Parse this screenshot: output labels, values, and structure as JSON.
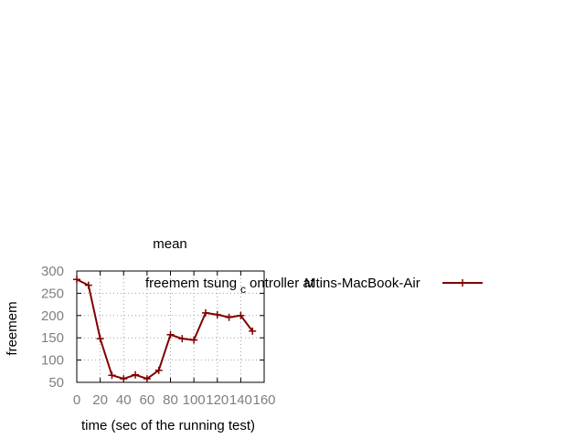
{
  "chart_data": {
    "type": "line",
    "title": "mean",
    "xlabel": "time (sec of the running test)",
    "ylabel": "freemem",
    "xlim": [
      0,
      160
    ],
    "ylim": [
      50,
      300
    ],
    "x_ticks": [
      "0",
      "20",
      "40",
      "60",
      "80",
      "100",
      "120",
      "140",
      "160"
    ],
    "y_ticks": [
      "50",
      "100",
      "150",
      "200",
      "250",
      "300"
    ],
    "grid": true,
    "legend_position": "top-right",
    "legend": {
      "part1": "freemem tsung",
      "subscript": "c",
      "part2": "ontroller at",
      "part3": "Mtins-MacBook-Air"
    },
    "series_color": "#800000",
    "series": [
      {
        "name": "freemem tsung_controller at Mtins-MacBook-Air",
        "x": [
          0,
          10,
          20,
          30,
          40,
          50,
          60,
          70,
          80,
          90,
          100,
          110,
          120,
          130,
          140,
          150
        ],
        "y": [
          281,
          268,
          148,
          66,
          58,
          67,
          58,
          77,
          157,
          148,
          145,
          206,
          202,
          196,
          200,
          165
        ]
      }
    ]
  }
}
